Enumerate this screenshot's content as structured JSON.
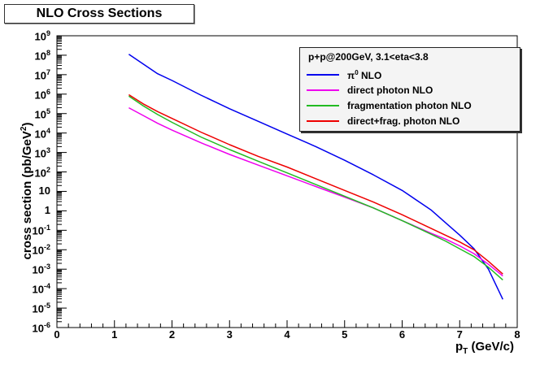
{
  "chart_data": {
    "type": "line",
    "title": "NLO Cross Sections",
    "xlabel_main": "p",
    "xlabel_sub": "T",
    "xlabel_rest": " (GeV/c)",
    "ylabel_main": "cross section (pb/GeV",
    "ylabel_sup": "2",
    "ylabel_end": ")",
    "xlim": [
      0,
      8
    ],
    "ylim_log10": [
      -6,
      9
    ],
    "yscale": "log",
    "legend": {
      "header": "p+p@200GeV, 3.1<eta<3.8",
      "position": "top-right"
    },
    "x_ticks": [
      "0",
      "1",
      "2",
      "3",
      "4",
      "5",
      "6",
      "7",
      "8"
    ],
    "y_ticks": [
      {
        "base": "10",
        "exp": "9"
      },
      {
        "base": "10",
        "exp": "8"
      },
      {
        "base": "10",
        "exp": "7"
      },
      {
        "base": "10",
        "exp": "6"
      },
      {
        "base": "10",
        "exp": "5"
      },
      {
        "base": "10",
        "exp": "4"
      },
      {
        "base": "10",
        "exp": "3"
      },
      {
        "base": "10",
        "exp": "2"
      },
      {
        "base": "10",
        "exp": ""
      },
      {
        "base": "1",
        "exp": ""
      },
      {
        "base": "10",
        "exp": "-1"
      },
      {
        "base": "10",
        "exp": "-2"
      },
      {
        "base": "10",
        "exp": "-3"
      },
      {
        "base": "10",
        "exp": "-4"
      },
      {
        "base": "10",
        "exp": "-5"
      },
      {
        "base": "10",
        "exp": "-6"
      }
    ],
    "series": [
      {
        "name": "pi0 NLO",
        "label_main": "π",
        "label_sup": "0",
        "label_rest": " NLO",
        "color": "#0000ee",
        "x": [
          1.25,
          1.5,
          1.75,
          2.0,
          2.5,
          3.0,
          3.5,
          4.0,
          4.5,
          5.0,
          5.5,
          6.0,
          6.5,
          6.75,
          7.0,
          7.25,
          7.5,
          7.75
        ],
        "log10y": [
          8.05,
          7.55,
          7.05,
          6.7,
          5.95,
          5.25,
          4.6,
          3.95,
          3.3,
          2.6,
          1.85,
          1.05,
          0.05,
          -0.6,
          -1.25,
          -1.95,
          -3.0,
          -4.55
        ]
      },
      {
        "name": "direct photon NLO",
        "label_main": "direct photon NLO",
        "label_sup": "",
        "label_rest": "",
        "color": "#ee00ee",
        "x": [
          1.25,
          1.5,
          1.75,
          2.0,
          2.5,
          3.0,
          3.5,
          4.0,
          4.5,
          5.0,
          5.5,
          6.0,
          6.5,
          6.75,
          7.0,
          7.25,
          7.5,
          7.75
        ],
        "log10y": [
          5.3,
          4.9,
          4.5,
          4.15,
          3.5,
          2.9,
          2.35,
          1.8,
          1.25,
          0.7,
          0.15,
          -0.5,
          -1.15,
          -1.45,
          -1.8,
          -2.2,
          -2.75,
          -3.35
        ]
      },
      {
        "name": "fragmentation photon NLO",
        "label_main": "fragmentation photon NLO",
        "label_sup": "",
        "label_rest": "",
        "color": "#22bb22",
        "x": [
          1.25,
          1.5,
          1.75,
          2.0,
          2.5,
          3.0,
          3.5,
          4.0,
          4.5,
          5.0,
          5.5,
          6.0,
          6.5,
          6.75,
          7.0,
          7.25,
          7.5,
          7.75
        ],
        "log10y": [
          5.9,
          5.4,
          4.95,
          4.55,
          3.8,
          3.15,
          2.55,
          1.95,
          1.35,
          0.75,
          0.15,
          -0.5,
          -1.2,
          -1.55,
          -1.95,
          -2.35,
          -2.9,
          -3.55
        ]
      },
      {
        "name": "direct+frag. photon NLO",
        "label_main": "direct+frag. photon NLO",
        "label_sup": "",
        "label_rest": "",
        "color": "#ee0000",
        "x": [
          1.25,
          1.5,
          1.75,
          2.0,
          2.5,
          3.0,
          3.5,
          4.0,
          4.5,
          5.0,
          5.5,
          6.0,
          6.5,
          6.75,
          7.0,
          7.25,
          7.5,
          7.75
        ],
        "log10y": [
          5.97,
          5.5,
          5.1,
          4.75,
          4.05,
          3.4,
          2.8,
          2.25,
          1.65,
          1.05,
          0.45,
          -0.2,
          -0.9,
          -1.25,
          -1.6,
          -2.0,
          -2.6,
          -3.25
        ]
      }
    ]
  }
}
